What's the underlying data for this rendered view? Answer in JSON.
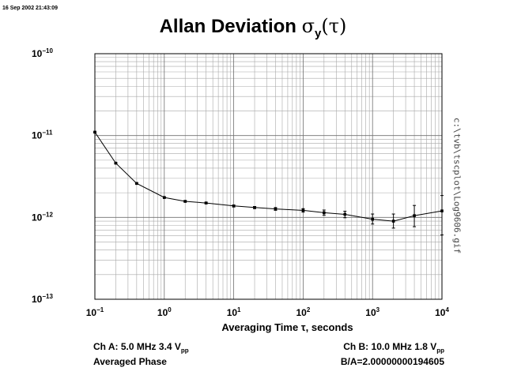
{
  "timestamp": "16 Sep 2002 21:43:09",
  "title": {
    "text": "Allan Deviation",
    "symbol": "σ",
    "subscript": "y",
    "arg": "(τ)"
  },
  "filepath": "c:\\tvb\\tscplot\\Log9606.gif",
  "channel_a": {
    "line1_prefix": "Ch A: 5.0 MHz 3.4 V",
    "line1_sub": "pp",
    "line2": "Averaged Phase"
  },
  "channel_b": {
    "line1_prefix": "Ch B: 10.0 MHz 1.8 V",
    "line1_sub": "pp",
    "line2": "B/A=2.00000000194605"
  },
  "chart_data": {
    "type": "line",
    "title": "Allan Deviation σy(τ)",
    "xlabel": "Averaging Time τ, seconds",
    "ylabel": "",
    "x_scale": "log",
    "y_scale": "log",
    "xlim": [
      0.1,
      10000
    ],
    "ylim": [
      1e-13,
      1e-10
    ],
    "grid": true,
    "x_ticks": [
      {
        "value": 0.1,
        "base": "10",
        "exp": "−1"
      },
      {
        "value": 1,
        "base": "10",
        "exp": "0"
      },
      {
        "value": 10,
        "base": "10",
        "exp": "1"
      },
      {
        "value": 100,
        "base": "10",
        "exp": "2"
      },
      {
        "value": 1000,
        "base": "10",
        "exp": "3"
      },
      {
        "value": 10000,
        "base": "10",
        "exp": "4"
      }
    ],
    "y_ticks": [
      {
        "value": 1e-10,
        "base": "10",
        "exp": "−10"
      },
      {
        "value": 1e-11,
        "base": "10",
        "exp": "−11"
      },
      {
        "value": 1e-12,
        "base": "10",
        "exp": "−12"
      },
      {
        "value": 1e-13,
        "base": "10",
        "exp": "−13"
      }
    ],
    "series": [
      {
        "x": [
          0.1,
          0.2,
          0.4,
          1,
          2,
          4,
          10,
          20,
          40,
          100,
          200,
          400,
          1000,
          2000,
          4000,
          10000
        ],
        "y": [
          1.1e-11,
          4.6e-12,
          2.6e-12,
          1.75e-12,
          1.57e-12,
          1.5e-12,
          1.38e-12,
          1.32e-12,
          1.27e-12,
          1.22e-12,
          1.14e-12,
          1.09e-12,
          9.5e-13,
          9e-13,
          1.05e-12,
          1.2e-12
        ],
        "y_err_low": [
          1.09e-11,
          4.55e-12,
          2.57e-12,
          1.72e-12,
          1.54e-12,
          1.47e-12,
          1.34e-12,
          1.28e-12,
          1.22e-12,
          1.16e-12,
          1.06e-12,
          9.9e-13,
          8.3e-13,
          7.4e-13,
          7.7e-13,
          6.1e-13
        ],
        "y_err_high": [
          1.11e-11,
          4.65e-12,
          2.63e-12,
          1.78e-12,
          1.6e-12,
          1.53e-12,
          1.42e-12,
          1.36e-12,
          1.32e-12,
          1.28e-12,
          1.23e-12,
          1.19e-12,
          1.1e-12,
          1.1e-12,
          1.4e-12,
          1.85e-12
        ]
      }
    ],
    "colors": {
      "line": "#000000",
      "grid": "#a8a8a8",
      "frame": "#000000"
    }
  }
}
